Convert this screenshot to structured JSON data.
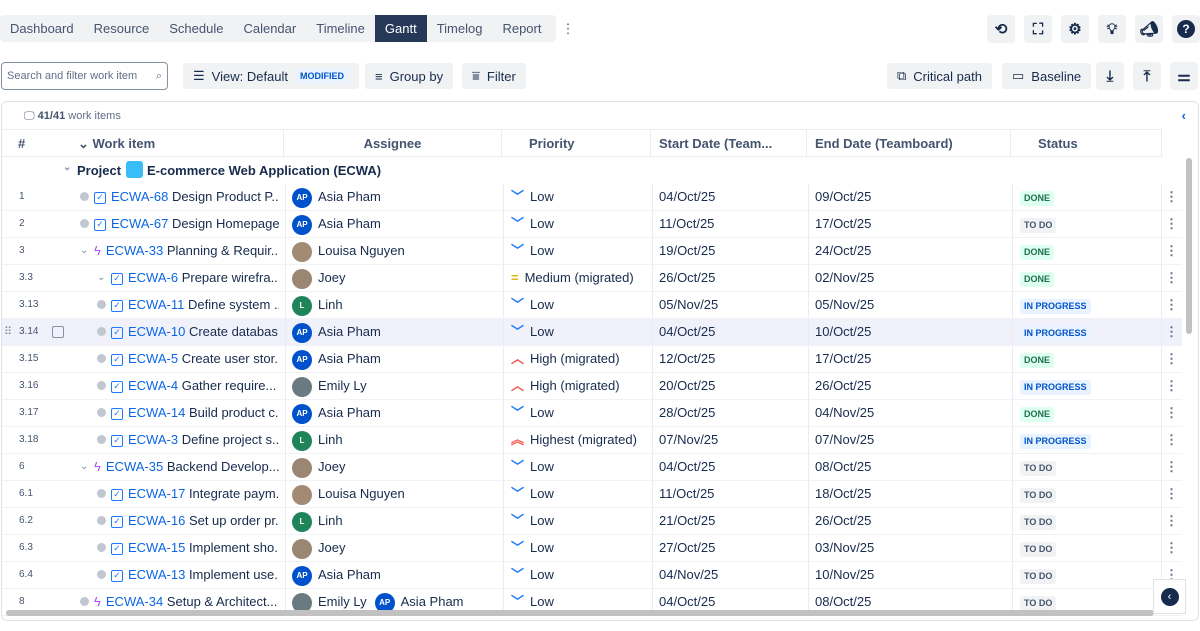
{
  "tabs": [
    "Dashboard",
    "Resource",
    "Schedule",
    "Calendar",
    "Timeline",
    "Gantt",
    "Timelog",
    "Report"
  ],
  "active_tab": "Gantt",
  "top_icons": [
    "refresh-icon",
    "fullscreen-icon",
    "settings-icon",
    "lightbulb-icon",
    "announcement-icon",
    "help-icon"
  ],
  "toolbar": {
    "search_placeholder": "Search and filter work item",
    "view_label": "View: Default",
    "view_badge": "MODIFIED",
    "group_by": "Group by",
    "filter": "Filter",
    "critical_path": "Critical path",
    "baseline": "Baseline"
  },
  "summary": {
    "count": "41/41",
    "suffix": " work items"
  },
  "columns": {
    "num": "#",
    "work_item": "Work item",
    "assignee": "Assignee",
    "priority": "Priority",
    "start": "Start Date (Team...",
    "end": "End Date (Teamboard)",
    "status": "Status"
  },
  "project": {
    "label": "Project",
    "name": "E-commerce Web Application (ECWA)"
  },
  "colors": {
    "accent": "#0c66e4",
    "active_tab": "#253858"
  },
  "rows": [
    {
      "num": "1",
      "level": 0,
      "type": "task",
      "key": "ECWA-68",
      "title": "Design Product P...",
      "assignees": [
        {
          "name": "Asia Pham",
          "initials": "AP",
          "color": "#0052cc"
        }
      ],
      "priority": "Low",
      "start": "04/Oct/25",
      "end": "09/Oct/25",
      "status": "DONE"
    },
    {
      "num": "2",
      "level": 0,
      "type": "task",
      "key": "ECWA-67",
      "title": "Design Homepage",
      "assignees": [
        {
          "name": "Asia Pham",
          "initials": "AP",
          "color": "#0052cc"
        }
      ],
      "priority": "Low",
      "start": "11/Oct/25",
      "end": "17/Oct/25",
      "status": "TO DO"
    },
    {
      "num": "3",
      "level": 0,
      "type": "epic",
      "expand": true,
      "key": "ECWA-33",
      "title": "Planning & Requir...",
      "assignees": [
        {
          "name": "Louisa Nguyen",
          "initials": "",
          "color": "#a38a74"
        }
      ],
      "priority": "Low",
      "start": "19/Oct/25",
      "end": "24/Oct/25",
      "status": "DONE"
    },
    {
      "num": "3.3",
      "level": 1,
      "type": "task",
      "expand": true,
      "key": "ECWA-6",
      "title": "Prepare wirefra...",
      "assignees": [
        {
          "name": "Joey",
          "initials": "",
          "color": "#9b8573"
        }
      ],
      "priority": "Medium (migrated)",
      "start": "26/Oct/25",
      "end": "02/Nov/25",
      "status": "DONE"
    },
    {
      "num": "3.13",
      "level": 1,
      "type": "task",
      "key": "ECWA-11",
      "title": "Define system ...",
      "assignees": [
        {
          "name": "Linh",
          "initials": "L",
          "color": "#1f845a"
        }
      ],
      "priority": "Low",
      "start": "05/Nov/25",
      "end": "05/Nov/25",
      "status": "IN PROGRESS"
    },
    {
      "num": "3.14",
      "level": 1,
      "type": "task",
      "key": "ECWA-10",
      "title": "Create databas...",
      "assignees": [
        {
          "name": "Asia Pham",
          "initials": "AP",
          "color": "#0052cc"
        }
      ],
      "priority": "Low",
      "start": "04/Oct/25",
      "end": "10/Oct/25",
      "status": "IN PROGRESS",
      "hover": true
    },
    {
      "num": "3.15",
      "level": 1,
      "type": "task",
      "key": "ECWA-5",
      "title": "Create user stor...",
      "assignees": [
        {
          "name": "Asia Pham",
          "initials": "AP",
          "color": "#0052cc"
        }
      ],
      "priority": "High (migrated)",
      "start": "12/Oct/25",
      "end": "17/Oct/25",
      "status": "DONE"
    },
    {
      "num": "3.16",
      "level": 1,
      "type": "task",
      "key": "ECWA-4",
      "title": "Gather require...",
      "assignees": [
        {
          "name": "Emily Ly",
          "initials": "",
          "color": "#6b7a80"
        }
      ],
      "priority": "High (migrated)",
      "start": "20/Oct/25",
      "end": "26/Oct/25",
      "status": "IN PROGRESS"
    },
    {
      "num": "3.17",
      "level": 1,
      "type": "task",
      "key": "ECWA-14",
      "title": "Build product c...",
      "assignees": [
        {
          "name": "Asia Pham",
          "initials": "AP",
          "color": "#0052cc"
        }
      ],
      "priority": "Low",
      "start": "28/Oct/25",
      "end": "04/Nov/25",
      "status": "DONE"
    },
    {
      "num": "3.18",
      "level": 1,
      "type": "task",
      "key": "ECWA-3",
      "title": "Define project s...",
      "assignees": [
        {
          "name": "Linh",
          "initials": "L",
          "color": "#1f845a"
        }
      ],
      "priority": "Highest (migrated)",
      "start": "07/Nov/25",
      "end": "07/Nov/25",
      "status": "IN PROGRESS"
    },
    {
      "num": "6",
      "level": 0,
      "type": "epic",
      "expand": true,
      "key": "ECWA-35",
      "title": "Backend Develop...",
      "assignees": [
        {
          "name": "Joey",
          "initials": "",
          "color": "#9b8573"
        }
      ],
      "priority": "Low",
      "start": "04/Oct/25",
      "end": "08/Oct/25",
      "status": "TO DO"
    },
    {
      "num": "6.1",
      "level": 1,
      "type": "task",
      "key": "ECWA-17",
      "title": "Integrate paym...",
      "assignees": [
        {
          "name": "Louisa Nguyen",
          "initials": "",
          "color": "#a38a74"
        }
      ],
      "priority": "Low",
      "start": "11/Oct/25",
      "end": "18/Oct/25",
      "status": "TO DO"
    },
    {
      "num": "6.2",
      "level": 1,
      "type": "task",
      "key": "ECWA-16",
      "title": "Set up order pr...",
      "assignees": [
        {
          "name": "Linh",
          "initials": "L",
          "color": "#1f845a"
        }
      ],
      "priority": "Low",
      "start": "21/Oct/25",
      "end": "26/Oct/25",
      "status": "TO DO"
    },
    {
      "num": "6.3",
      "level": 1,
      "type": "task",
      "key": "ECWA-15",
      "title": "Implement sho...",
      "assignees": [
        {
          "name": "Joey",
          "initials": "",
          "color": "#9b8573"
        }
      ],
      "priority": "Low",
      "start": "27/Oct/25",
      "end": "03/Nov/25",
      "status": "TO DO"
    },
    {
      "num": "6.4",
      "level": 1,
      "type": "task",
      "key": "ECWA-13",
      "title": "Implement use...",
      "assignees": [
        {
          "name": "Asia Pham",
          "initials": "AP",
          "color": "#0052cc"
        }
      ],
      "priority": "Low",
      "start": "04/Nov/25",
      "end": "10/Nov/25",
      "status": "TO DO"
    },
    {
      "num": "8",
      "level": 0,
      "type": "epic",
      "key": "ECWA-34",
      "title": "Setup & Architect...",
      "assignees": [
        {
          "name": "Emily Ly",
          "initials": "",
          "color": "#6b7a80"
        },
        {
          "name": "Asia Pham",
          "initials": "AP",
          "color": "#0052cc"
        }
      ],
      "priority": "Low",
      "start": "04/Oct/25",
      "end": "08/Oct/25",
      "status": "TO DO"
    }
  ]
}
